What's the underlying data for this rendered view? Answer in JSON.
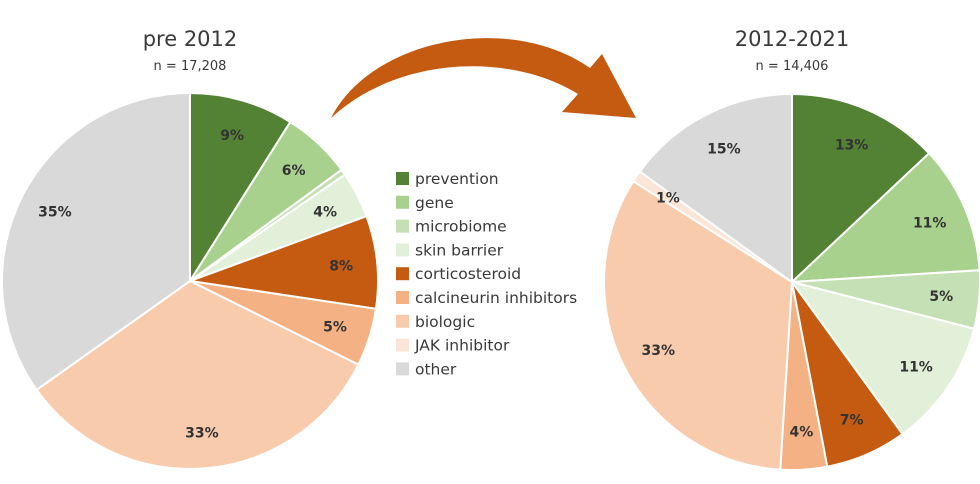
{
  "legend": {
    "items": [
      {
        "label": "prevention",
        "color": "#548235"
      },
      {
        "label": "gene",
        "color": "#a9d18e"
      },
      {
        "label": "microbiome",
        "color": "#c5e0b4"
      },
      {
        "label": "skin barrier",
        "color": "#e2f0d9"
      },
      {
        "label": "corticosteroid",
        "color": "#c55a11"
      },
      {
        "label": "calcineurin inhibitors",
        "color": "#f4b183"
      },
      {
        "label": "biologic",
        "color": "#f8cbad"
      },
      {
        "label": "JAK inhibitor",
        "color": "#fbe5d6"
      },
      {
        "label": "other",
        "color": "#d9d9d9"
      }
    ]
  },
  "arrow": {
    "color": "#c55a11"
  },
  "chart_data": [
    {
      "type": "pie",
      "title": "pre 2012",
      "subtitle": "n = 17,208",
      "categories": [
        "prevention",
        "gene",
        "microbiome",
        "skin barrier",
        "corticosteroid",
        "calcineurin inhibitors",
        "biologic",
        "JAK inhibitor",
        "other"
      ],
      "values": [
        9,
        6,
        0.5,
        4,
        8,
        5,
        33,
        0,
        35
      ],
      "labels": [
        "9%",
        "6%",
        "",
        "4%",
        "8%",
        "5%",
        "33%",
        "",
        "35%"
      ],
      "start_angle_deg": 0,
      "direction": "clockwise"
    },
    {
      "type": "pie",
      "title": "2012-2021",
      "subtitle": "n = 14,406",
      "categories": [
        "prevention",
        "gene",
        "microbiome",
        "skin barrier",
        "corticosteroid",
        "calcineurin inhibitors",
        "biologic",
        "JAK inhibitor",
        "other"
      ],
      "values": [
        13,
        11,
        5,
        11,
        7,
        4,
        33,
        1,
        15
      ],
      "labels": [
        "13%",
        "11%",
        "5%",
        "11%",
        "7%",
        "4%",
        "33%",
        "1%",
        "15%"
      ],
      "start_angle_deg": 0,
      "direction": "clockwise"
    }
  ]
}
